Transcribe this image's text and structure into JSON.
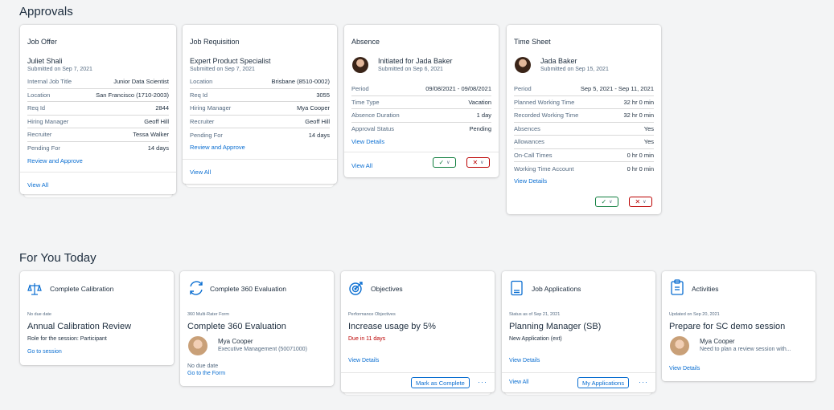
{
  "approvals": {
    "title": "Approvals",
    "job_offer": {
      "title": "Job Offer",
      "name": "Juliet Shali",
      "submitted": "Submitted on Sep 7, 2021",
      "rows": [
        {
          "k": "Internal Job Title",
          "v": "Junior Data Scientist"
        },
        {
          "k": "Location",
          "v": "San Francisco (1710-2003)"
        },
        {
          "k": "Req Id",
          "v": "2844"
        },
        {
          "k": "Hiring Manager",
          "v": "Geoff Hill"
        },
        {
          "k": "Recruiter",
          "v": "Tessa Walker"
        },
        {
          "k": "Pending For",
          "v": "14 days"
        }
      ],
      "action": "Review and Approve",
      "view_all": "View All"
    },
    "job_requisition": {
      "title": "Job Requisition",
      "name": "Expert Product Specialist",
      "submitted": "Submitted on Sep 7, 2021",
      "rows": [
        {
          "k": "Location",
          "v": "Brisbane (8510-0002)"
        },
        {
          "k": "Req Id",
          "v": "3055"
        },
        {
          "k": "Hiring Manager",
          "v": "Mya Cooper"
        },
        {
          "k": "Recruiter",
          "v": "Geoff Hill"
        },
        {
          "k": "Pending For",
          "v": "14 days"
        }
      ],
      "action": "Review and Approve",
      "view_all": "View All"
    },
    "absence": {
      "title": "Absence",
      "name": "Initiated for Jada Baker",
      "submitted": "Submitted on Sep 6, 2021",
      "rows": [
        {
          "k": "Period",
          "v": "09/08/2021 - 09/08/2021"
        },
        {
          "k": "Time Type",
          "v": "Vacation"
        },
        {
          "k": "Absence Duration",
          "v": "1 day"
        },
        {
          "k": "Approval Status",
          "v": "Pending"
        }
      ],
      "action": "View Details",
      "view_all": "View All"
    },
    "time_sheet": {
      "title": "Time Sheet",
      "name": "Jada Baker",
      "submitted": "Submitted on Sep 15, 2021",
      "rows": [
        {
          "k": "Period",
          "v": "Sep 5, 2021 - Sep 11, 2021"
        },
        {
          "k": "Planned Working Time",
          "v": "32 hr 0 min"
        },
        {
          "k": "Recorded Working Time",
          "v": "32 hr 0 min"
        },
        {
          "k": "Absences",
          "v": "Yes"
        },
        {
          "k": "Allowances",
          "v": "Yes"
        },
        {
          "k": "On-Call Times",
          "v": "0 hr 0 min"
        },
        {
          "k": "Working Time Account",
          "v": "0 hr 0 min"
        }
      ],
      "action": "View Details"
    },
    "approve_glyph": "✓",
    "reject_glyph": "✕",
    "chevron_glyph": "∨"
  },
  "for_you": {
    "title": "For You Today",
    "calibration": {
      "title": "Complete Calibration",
      "small": "No due date",
      "big": "Annual Calibration Review",
      "text": "Role for the session: Participant",
      "link": "Go to session"
    },
    "evaluation": {
      "title": "Complete 360 Evaluation",
      "small": "360 Multi-Rater Form",
      "big": "Complete 360 Evaluation",
      "person": "Mya Cooper",
      "person_sub": "Executive Management (50071000)",
      "due": "No due date",
      "link": "Go to the Form"
    },
    "objectives": {
      "title": "Objectives",
      "small": "Performance Objectives",
      "big": "Increase usage by 5%",
      "due": "Due in 11 days",
      "link": "View Details",
      "button": "Mark as Complete",
      "more": "···"
    },
    "job_applications": {
      "title": "Job Applications",
      "small": "Status as of Sep 21, 2021",
      "big": "Planning Manager (SB)",
      "text": "New Application (ext)",
      "link": "View Details",
      "view_all": "View All",
      "button": "My Applications",
      "more": "···"
    },
    "activities": {
      "title": "Activities",
      "small": "Updated on Sep 20, 2021",
      "big": "Prepare for SC demo session",
      "person": "Mya Cooper",
      "person_sub": "Need to plan a review session with...",
      "link": "View Details"
    }
  },
  "colors": {
    "link": "#0a6ed1",
    "approve": "#107e3e",
    "reject": "#bb0000",
    "due": "#bb0000",
    "background": "#f3f4f5"
  }
}
